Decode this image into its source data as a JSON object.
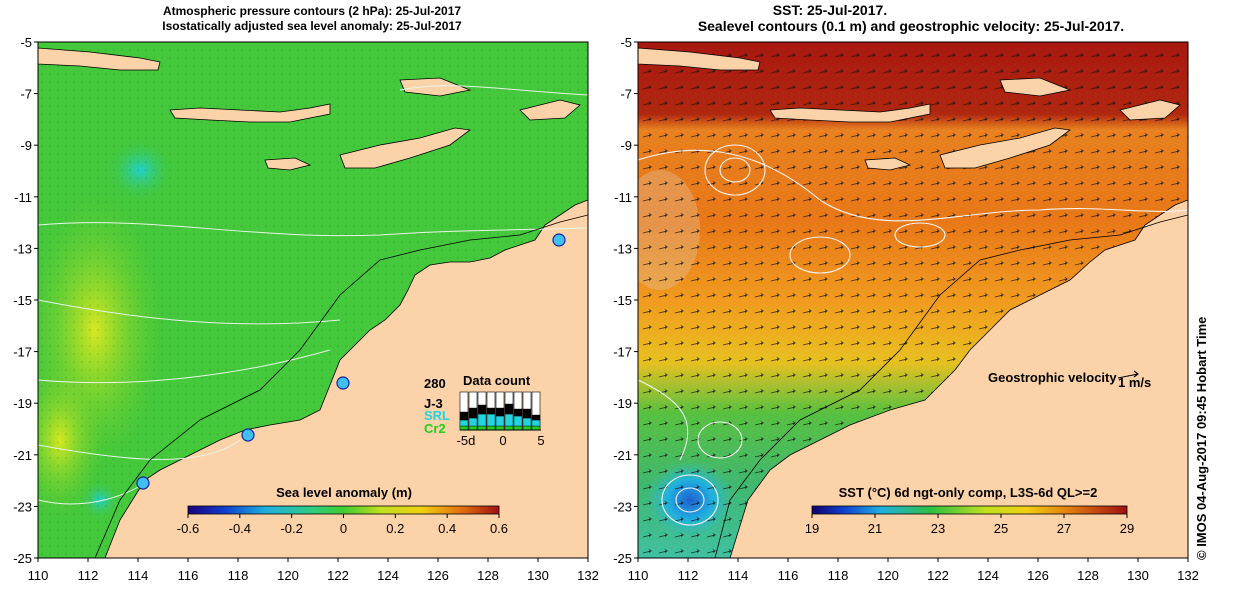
{
  "left_panel": {
    "title_line1": "Atmospheric pressure contours (2 hPa): 25-Jul-2017",
    "title_line2": "Isostatically adjusted sea level anomaly: 25-Jul-2017",
    "y_ticks": [
      "-5",
      "-7",
      "-9",
      "-11",
      "-13",
      "-15",
      "-17",
      "-19",
      "-21",
      "-23",
      "-25"
    ],
    "x_ticks": [
      "110",
      "112",
      "114",
      "116",
      "118",
      "120",
      "122",
      "124",
      "126",
      "128",
      "130",
      "132"
    ],
    "colorbar": {
      "title": "Sea level anomaly (m)",
      "ticks": [
        "-0.6",
        "-0.4",
        "-0.2",
        "0",
        "0.2",
        "0.4",
        "0.6"
      ]
    },
    "data_count": {
      "title": "Data count",
      "max_label": "280",
      "x_ticks": [
        "-5d",
        "0",
        "5"
      ],
      "series": [
        {
          "name": "J-3",
          "color": "#000000"
        },
        {
          "name": "SRL",
          "color": "#22d3e0"
        },
        {
          "name": "Cr2",
          "color": "#22cc22"
        }
      ]
    },
    "colors": {
      "land": "#fcd3a8",
      "ocean": "#44c83c",
      "coastline": "#000000"
    }
  },
  "right_panel": {
    "title_line1": "SST: 25-Jul-2017.",
    "title_line2": "Sealevel contours (0.1 m) and geostrophic velocity: 25-Jul-2017.",
    "y_ticks": [
      "-5",
      "-7",
      "-9",
      "-11",
      "-13",
      "-15",
      "-17",
      "-19",
      "-21",
      "-23",
      "-25"
    ],
    "x_ticks": [
      "110",
      "112",
      "114",
      "116",
      "118",
      "120",
      "122",
      "124",
      "126",
      "128",
      "130",
      "132"
    ],
    "velocity_legend": {
      "label": "Geostrophic velocity",
      "scale": "1 m/s"
    },
    "colorbar": {
      "title": "SST (°C) 6d ngt-only comp, L3S-6d QL>=2",
      "ticks": [
        "19",
        "21",
        "23",
        "25",
        "27",
        "29"
      ]
    },
    "colors": {
      "land": "#fcd3a8",
      "warm": "#e07a10",
      "hot": "#a81a10",
      "cool": "#3cc040"
    }
  },
  "credit": "© IMOS 04-Aug-2017 09:45 Hobart Time"
}
